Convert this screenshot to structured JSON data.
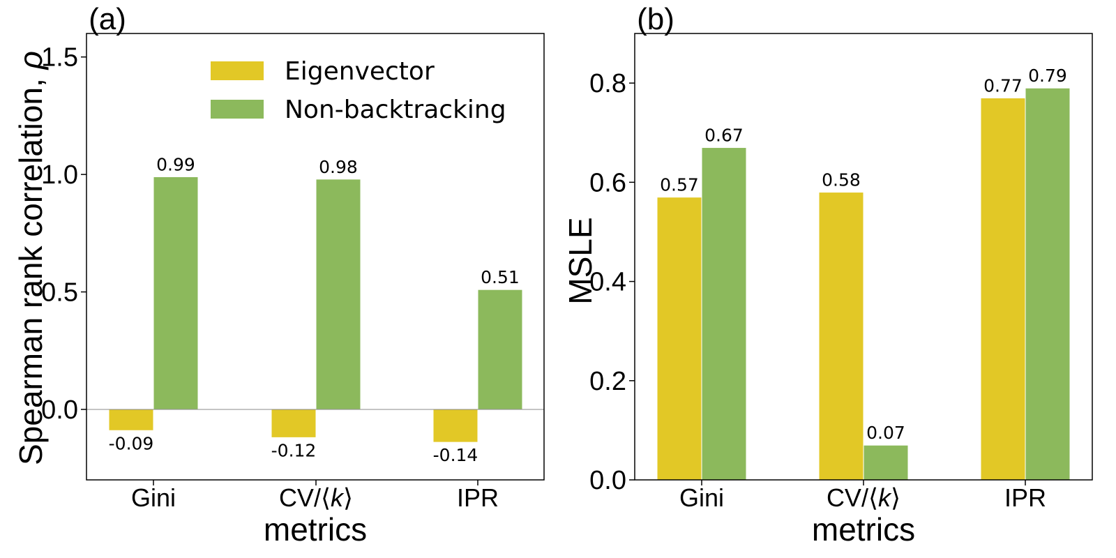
{
  "colors": {
    "eigenvector": "#e2c826",
    "non_backtracking": "#8cb95c"
  },
  "chart_data": [
    {
      "type": "bar",
      "panel_label": "(a)",
      "categories": [
        "Gini",
        "CV/⟨k⟩",
        "IPR"
      ],
      "category_parts": [
        {
          "plain": "Gini",
          "italic": "",
          "suffix": ""
        },
        {
          "plain": "CV/⟨",
          "italic": "k",
          "suffix": "⟩"
        },
        {
          "plain": "IPR",
          "italic": "",
          "suffix": ""
        }
      ],
      "series": [
        {
          "name": "Eigenvector",
          "values": [
            -0.09,
            -0.12,
            -0.14
          ],
          "labels": [
            "-0.09",
            "-0.12",
            "-0.14"
          ]
        },
        {
          "name": "Non-backtracking",
          "values": [
            0.99,
            0.98,
            0.51
          ],
          "labels": [
            "0.99",
            "0.98",
            "0.51"
          ]
        }
      ],
      "xlabel": "metrics",
      "ylabel": "Spearman rank correlation, ",
      "ylabel_symbol": "ρ",
      "ylim": [
        -0.3,
        1.6
      ],
      "yticks": [
        0.0,
        0.5,
        1.0,
        1.5
      ],
      "ytick_labels": [
        "0.0",
        "0.5",
        "1.0",
        "1.5"
      ],
      "zero_line": true,
      "legend": "top-right",
      "grid": false
    },
    {
      "type": "bar",
      "panel_label": "(b)",
      "categories": [
        "Gini",
        "CV/⟨k⟩",
        "IPR"
      ],
      "category_parts": [
        {
          "plain": "Gini",
          "italic": "",
          "suffix": ""
        },
        {
          "plain": "CV/⟨",
          "italic": "k",
          "suffix": "⟩"
        },
        {
          "plain": "IPR",
          "italic": "",
          "suffix": ""
        }
      ],
      "series": [
        {
          "name": "Eigenvector",
          "values": [
            0.57,
            0.58,
            0.77
          ],
          "labels": [
            "0.57",
            "0.58",
            "0.77"
          ]
        },
        {
          "name": "Non-backtracking",
          "values": [
            0.67,
            0.07,
            0.79
          ],
          "labels": [
            "0.67",
            "0.07",
            "0.79"
          ]
        }
      ],
      "xlabel": "metrics",
      "ylabel": "MSLE",
      "ylabel_symbol": "",
      "ylim": [
        0.0,
        0.9
      ],
      "yticks": [
        0.0,
        0.2,
        0.4,
        0.6,
        0.8
      ],
      "ytick_labels": [
        "0.0",
        "0.2",
        "0.4",
        "0.6",
        "0.8"
      ],
      "zero_line": false,
      "legend": "none",
      "grid": false
    }
  ]
}
